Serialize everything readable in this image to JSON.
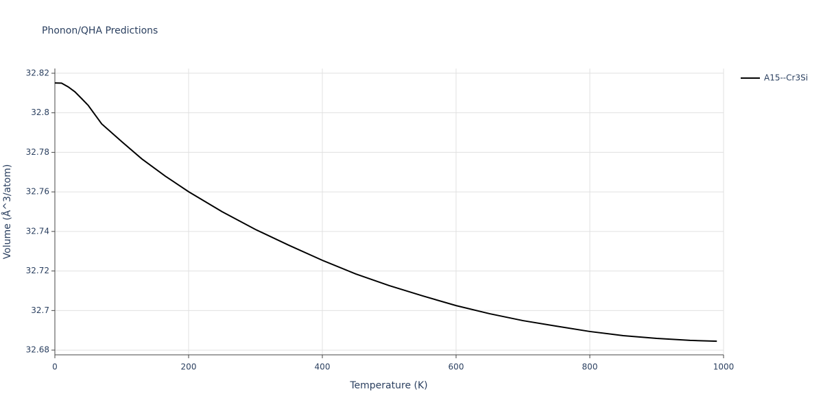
{
  "chart_data": {
    "type": "line",
    "title": "Phonon/QHA Predictions",
    "x_label": "Temperature (K)",
    "y_label": "Volume (Å^3/atom)",
    "x": [
      0,
      10,
      20,
      30,
      40,
      50,
      70,
      100,
      130,
      165,
      200,
      250,
      300,
      350,
      400,
      450,
      500,
      550,
      600,
      650,
      700,
      750,
      800,
      850,
      900,
      950,
      990
    ],
    "series": [
      {
        "name": "A15--Cr3Si",
        "color": "#000000",
        "values": [
          32.8151,
          32.815,
          32.8131,
          32.8106,
          32.8072,
          32.8037,
          32.7944,
          32.7854,
          32.7767,
          32.768,
          32.7601,
          32.75,
          32.741,
          32.733,
          32.7254,
          32.7185,
          32.7126,
          32.7074,
          32.7025,
          32.6984,
          32.6949,
          32.6921,
          32.6894,
          32.6873,
          32.6859,
          32.6849,
          32.6845
        ]
      }
    ],
    "xlim": [
      0,
      1000
    ],
    "xticks": [
      0,
      200,
      400,
      600,
      800,
      1000
    ],
    "ylim": [
      32.6776,
      32.8224
    ],
    "yticks": [
      32.68,
      32.7,
      32.72,
      32.74,
      32.76,
      32.78,
      32.8,
      32.82
    ],
    "grid": true,
    "legend": "right"
  }
}
